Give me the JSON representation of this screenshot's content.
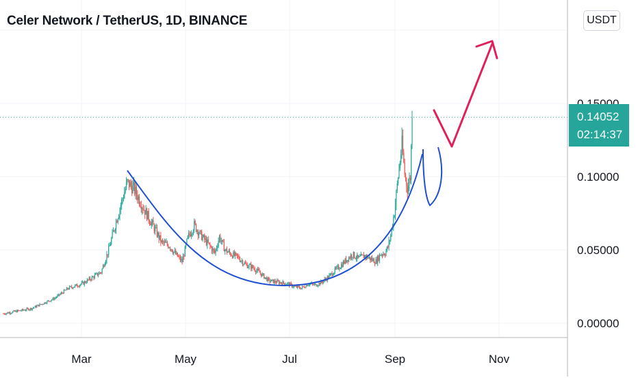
{
  "header": {
    "title": "Celer Network / TetherUS, 1D, BINANCE"
  },
  "toolbar": {
    "currency_label": "USDT"
  },
  "last_price": {
    "value": "0.14052",
    "countdown": "02:14:37",
    "color": "#26a69a"
  },
  "colors": {
    "up": "#26a69a",
    "down": "#ef5350",
    "arc": "#2050d0",
    "arrow": "#e0205a",
    "axis_text": "#131722"
  },
  "chart_data": {
    "type": "candlestick",
    "x_ticks": [
      "Mar",
      "May",
      "Jul",
      "Sep",
      "Nov"
    ],
    "y_ticks": [
      "0.00000",
      "0.05000",
      "0.10000",
      "0.15000"
    ],
    "ylim": [
      -0.01,
      0.21
    ],
    "price_line": 0.14052,
    "annotations": [
      "cup-arc",
      "handle-arc",
      "projection-arrow"
    ],
    "grid": true,
    "anchors": [
      [
        0,
        0.0065
      ],
      [
        30,
        0.01
      ],
      [
        55,
        0.017
      ],
      [
        70,
        0.024
      ],
      [
        85,
        0.027
      ],
      [
        95,
        0.031
      ],
      [
        105,
        0.035
      ],
      [
        113,
        0.05
      ],
      [
        120,
        0.067
      ],
      [
        127,
        0.083
      ],
      [
        133,
        0.096
      ],
      [
        140,
        0.092
      ],
      [
        147,
        0.083
      ],
      [
        155,
        0.073
      ],
      [
        162,
        0.065
      ],
      [
        170,
        0.055
      ],
      [
        178,
        0.053
      ],
      [
        185,
        0.047
      ],
      [
        192,
        0.042
      ],
      [
        198,
        0.058
      ],
      [
        205,
        0.067
      ],
      [
        212,
        0.06
      ],
      [
        220,
        0.054
      ],
      [
        227,
        0.048
      ],
      [
        232,
        0.059
      ],
      [
        238,
        0.05
      ],
      [
        245,
        0.047
      ],
      [
        252,
        0.045
      ],
      [
        260,
        0.04
      ],
      [
        268,
        0.038
      ],
      [
        276,
        0.034
      ],
      [
        285,
        0.029
      ],
      [
        295,
        0.028
      ],
      [
        305,
        0.027
      ],
      [
        312,
        0.025
      ],
      [
        320,
        0.024
      ],
      [
        328,
        0.027
      ],
      [
        335,
        0.026
      ],
      [
        342,
        0.028
      ],
      [
        350,
        0.032
      ],
      [
        356,
        0.036
      ],
      [
        362,
        0.039
      ],
      [
        368,
        0.043
      ],
      [
        375,
        0.047
      ],
      [
        381,
        0.044
      ],
      [
        388,
        0.046
      ],
      [
        394,
        0.044
      ],
      [
        400,
        0.042
      ],
      [
        405,
        0.047
      ],
      [
        410,
        0.048
      ],
      [
        413,
        0.052
      ],
      [
        416,
        0.06
      ],
      [
        420,
        0.076
      ],
      [
        424,
        0.1
      ],
      [
        428,
        0.122
      ],
      [
        431,
        0.102
      ],
      [
        434,
        0.092
      ],
      [
        437,
        0.1
      ],
      [
        439,
        0.14
      ]
    ]
  }
}
